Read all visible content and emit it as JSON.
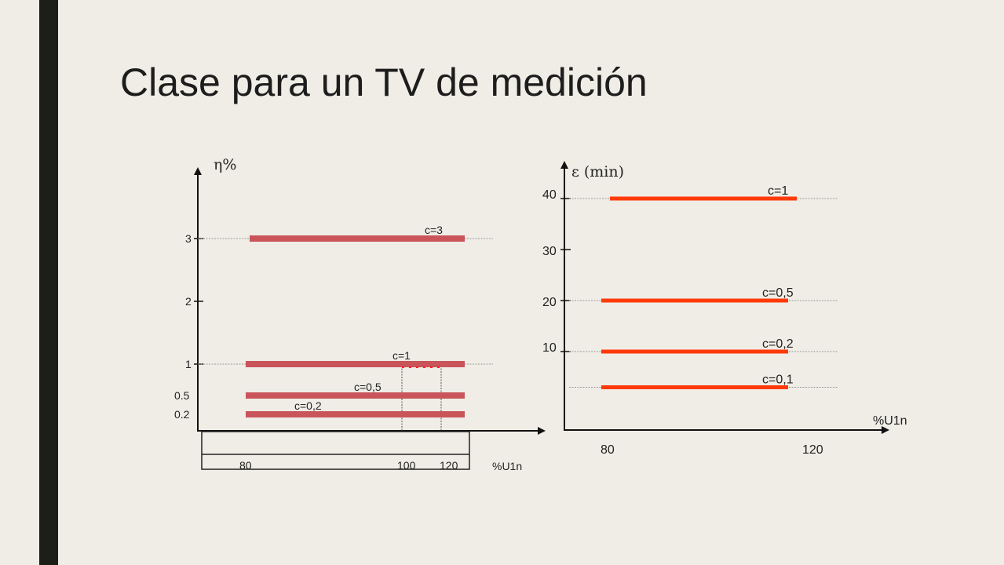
{
  "slide": {
    "title": "Clase para un TV de medición"
  },
  "colors": {
    "left_bars": "#c9545a",
    "right_bars": "#ff3a0a",
    "background": "#efede5"
  },
  "chart_data": [
    {
      "type": "line",
      "ylabel": "η%",
      "xlabel": "%U1n",
      "yticks": [
        {
          "label": "3",
          "value": 3
        },
        {
          "label": "2",
          "value": 2
        },
        {
          "label": "1",
          "value": 1
        },
        {
          "label": "0.5",
          "value": 0.5
        },
        {
          "label": "0.2",
          "value": 0.2
        }
      ],
      "xticks": [
        {
          "label": "80",
          "value": 80
        },
        {
          "label": "100",
          "value": 100
        },
        {
          "label": "120",
          "value": 120
        }
      ],
      "series": [
        {
          "name": "c=3",
          "value": 3
        },
        {
          "name": "c=1",
          "value": 1
        },
        {
          "name": "c=0,5",
          "value": 0.5
        },
        {
          "name": "c=0,2",
          "value": 0.2
        }
      ]
    },
    {
      "type": "line",
      "ylabel": "ε (min)",
      "xlabel": "%U1n",
      "yticks": [
        {
          "label": "40",
          "value": 40
        },
        {
          "label": "30",
          "value": 30
        },
        {
          "label": "20",
          "value": 20
        },
        {
          "label": "10",
          "value": 10
        }
      ],
      "xticks": [
        {
          "label": "80",
          "value": 80
        },
        {
          "label": "120",
          "value": 120
        }
      ],
      "series": [
        {
          "name": "c=1",
          "value": 40
        },
        {
          "name": "c=0,5",
          "value": 20
        },
        {
          "name": "c=0,2",
          "value": 10
        },
        {
          "name": "c=0,1",
          "value": 3
        }
      ]
    }
  ]
}
